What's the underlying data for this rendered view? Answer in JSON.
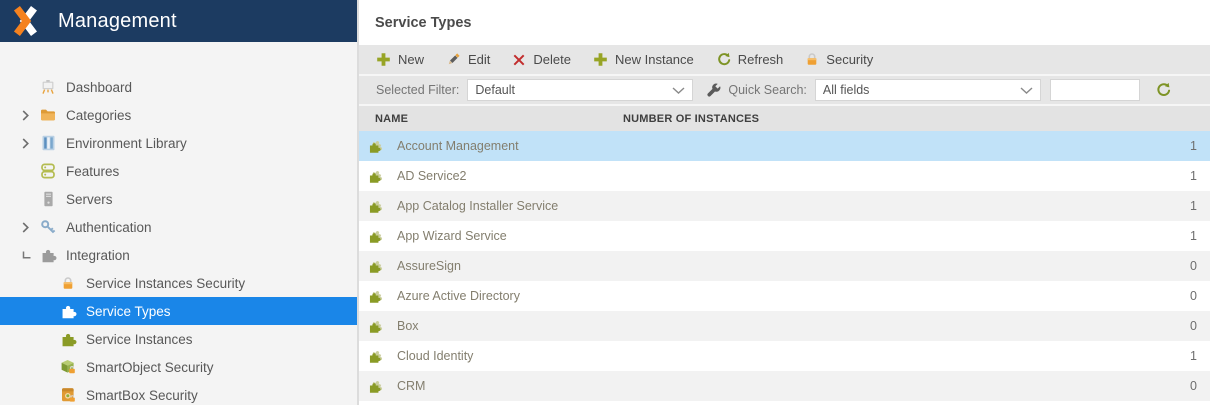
{
  "app": {
    "title": "Management"
  },
  "colors": {
    "header_navy": "#1c3b61",
    "brand_orange": "#f5821f",
    "selected_item_blue": "#1a86e8",
    "selected_row_blue": "#c1e2f8",
    "olive_green": "#8a9b26",
    "toolbar_gray": "#e6e6e6",
    "alt_row_gray": "#f2f2f2",
    "delete_red": "#c22d2d",
    "lock_orange": "#efa033"
  },
  "sidebar": {
    "items": [
      {
        "label": "Dashboard",
        "icon": "dashboard",
        "level": 0,
        "expand": "none",
        "selected": false
      },
      {
        "label": "Categories",
        "icon": "folder",
        "level": 0,
        "expand": "collapsed",
        "selected": false
      },
      {
        "label": "Environment Library",
        "icon": "library",
        "level": 0,
        "expand": "collapsed",
        "selected": false
      },
      {
        "label": "Features",
        "icon": "features",
        "level": 0,
        "expand": "none",
        "selected": false
      },
      {
        "label": "Servers",
        "icon": "server",
        "level": 0,
        "expand": "none",
        "selected": false
      },
      {
        "label": "Authentication",
        "icon": "key",
        "level": 0,
        "expand": "collapsed",
        "selected": false
      },
      {
        "label": "Integration",
        "icon": "puzzle-gray",
        "level": 0,
        "expand": "expanded",
        "selected": false
      },
      {
        "label": "Service Instances Security",
        "icon": "lock",
        "level": 1,
        "expand": "none",
        "selected": false
      },
      {
        "label": "Service Types",
        "icon": "puzzle-white",
        "level": 1,
        "expand": "none",
        "selected": true
      },
      {
        "label": "Service Instances",
        "icon": "puzzle-olive",
        "level": 1,
        "expand": "none",
        "selected": false
      },
      {
        "label": "SmartObject Security",
        "icon": "cube-lock",
        "level": 1,
        "expand": "none",
        "selected": false
      },
      {
        "label": "SmartBox Security",
        "icon": "box-lock",
        "level": 1,
        "expand": "none",
        "selected": false
      }
    ]
  },
  "panel": {
    "title": "Service Types",
    "toolbar": [
      {
        "label": "New",
        "icon": "plus"
      },
      {
        "label": "Edit",
        "icon": "pencil"
      },
      {
        "label": "Delete",
        "icon": "delete-x"
      },
      {
        "label": "New Instance",
        "icon": "plus"
      },
      {
        "label": "Refresh",
        "icon": "refresh"
      },
      {
        "label": "Security",
        "icon": "lock"
      }
    ],
    "filter_bar": {
      "selected_filter_label": "Selected Filter:",
      "selected_filter_value": "Default",
      "quick_search_label": "Quick Search:",
      "quick_search_value": "All fields",
      "search_input_value": ""
    },
    "table": {
      "columns": [
        "NAME",
        "NUMBER OF INSTANCES"
      ],
      "rows": [
        {
          "name": "Account Management",
          "instances": "1",
          "selected": true
        },
        {
          "name": "AD Service2",
          "instances": "1",
          "selected": false
        },
        {
          "name": "App Catalog Installer Service",
          "instances": "1",
          "selected": false
        },
        {
          "name": "App Wizard Service",
          "instances": "1",
          "selected": false
        },
        {
          "name": "AssureSign",
          "instances": "0",
          "selected": false
        },
        {
          "name": "Azure Active Directory",
          "instances": "0",
          "selected": false
        },
        {
          "name": "Box",
          "instances": "0",
          "selected": false
        },
        {
          "name": "Cloud Identity",
          "instances": "1",
          "selected": false
        },
        {
          "name": "CRM",
          "instances": "0",
          "selected": false
        }
      ]
    }
  }
}
